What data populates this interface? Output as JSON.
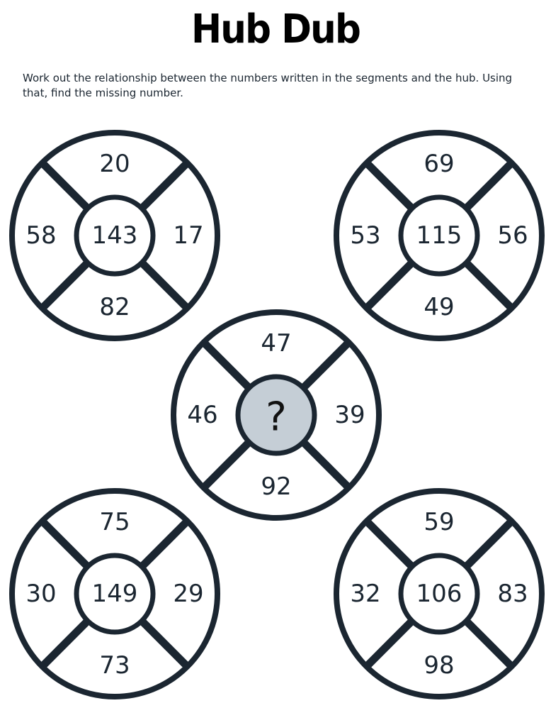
{
  "title": "Hub Dub",
  "instructions": "Work out the relationship between the numbers written in the segments and the hub. Using that, find the missing number.",
  "colors": {
    "ink": "#1b2631",
    "missing_hub_fill": "#c5ced6",
    "background": "#ffffff"
  },
  "wheels": [
    {
      "id": "top-left",
      "hub": "143",
      "top": "20",
      "right": "17",
      "bottom": "82",
      "left": "58",
      "missing": false
    },
    {
      "id": "top-right",
      "hub": "115",
      "top": "69",
      "right": "56",
      "bottom": "49",
      "left": "53",
      "missing": false
    },
    {
      "id": "center",
      "hub": "?",
      "top": "47",
      "right": "39",
      "bottom": "92",
      "left": "46",
      "missing": true
    },
    {
      "id": "bottom-left",
      "hub": "149",
      "top": "75",
      "right": "29",
      "bottom": "73",
      "left": "30",
      "missing": false
    },
    {
      "id": "bottom-right",
      "hub": "106",
      "top": "59",
      "right": "83",
      "bottom": "98",
      "left": "32",
      "missing": false
    }
  ]
}
